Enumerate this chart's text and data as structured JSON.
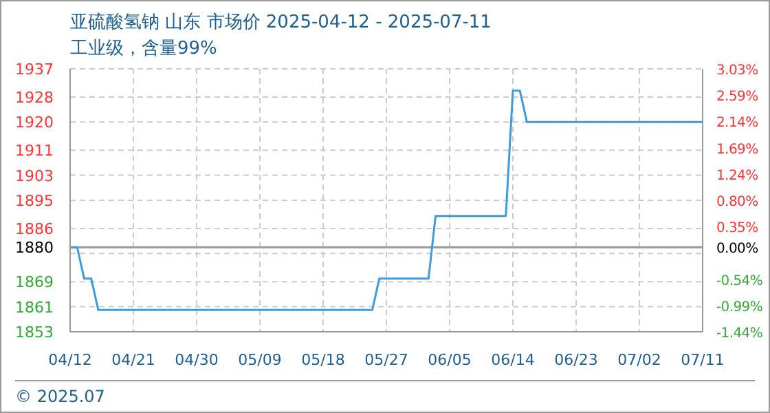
{
  "chart_data": {
    "type": "line",
    "title": "亚硫酸氢钠 山东 市场价 2025-04-12 - 2025-07-11",
    "subtitle": "工业级，含量99%",
    "x": [
      "2025-04-12",
      "2025-04-13",
      "2025-04-14",
      "2025-04-15",
      "2025-04-16",
      "2025-05-25",
      "2025-05-26",
      "2025-06-02",
      "2025-06-03",
      "2025-06-13",
      "2025-06-14",
      "2025-06-15",
      "2025-06-16",
      "2025-07-11"
    ],
    "series": [
      {
        "color": "#3d9be0",
        "values": [
          1880,
          1880,
          1870,
          1870,
          1860,
          1860,
          1870,
          1870,
          1890,
          1890,
          1930,
          1930,
          1920,
          1920
        ]
      }
    ],
    "xlim": [
      "2025-04-12",
      "2025-07-11"
    ],
    "xticks": [
      {
        "value": "2025-04-12",
        "label": "04/12"
      },
      {
        "value": "2025-04-21",
        "label": "04/21"
      },
      {
        "value": "2025-04-30",
        "label": "04/30"
      },
      {
        "value": "2025-05-09",
        "label": "05/09"
      },
      {
        "value": "2025-05-18",
        "label": "05/18"
      },
      {
        "value": "2025-05-27",
        "label": "05/27"
      },
      {
        "value": "2025-06-05",
        "label": "06/05"
      },
      {
        "value": "2025-06-14",
        "label": "06/14"
      },
      {
        "value": "2025-06-23",
        "label": "06/23"
      },
      {
        "value": "2025-07-02",
        "label": "07/02"
      },
      {
        "value": "2025-07-11",
        "label": "07/11"
      }
    ],
    "ylim": [
      1853,
      1937
    ],
    "yticks": [
      1853,
      1861,
      1869,
      {
        "value": 1878,
        "label": null
      },
      1880,
      1886,
      1895,
      1903,
      1911,
      1920,
      1928,
      1937
    ],
    "y2lim": [
      -1.436,
      3.032
    ],
    "y2ticks": [
      {
        "value": -1.436,
        "label": "-1.44%"
      },
      {
        "value": -0.989,
        "label": "-0.99%"
      },
      {
        "value": -0.543,
        "label": "-0.54%"
      },
      {
        "value": 0,
        "label": "0.00%"
      },
      {
        "value": 0.351,
        "label": "0.35%"
      },
      {
        "value": 0.798,
        "label": "0.80%"
      },
      {
        "value": 1.245,
        "label": "1.24%"
      },
      {
        "value": 1.691,
        "label": "1.69%"
      },
      {
        "value": 2.138,
        "label": "2.14%"
      },
      {
        "value": 2.585,
        "label": "2.59%"
      },
      {
        "value": 3.032,
        "label": "3.03%"
      }
    ],
    "ref_lines": [
      {
        "axis": "y",
        "value": 1880,
        "color": "#999999",
        "line_style": "solid"
      }
    ],
    "grid": true,
    "marker": "none",
    "line_style": "solid",
    "annotations": [
      "© 2025.07"
    ]
  }
}
